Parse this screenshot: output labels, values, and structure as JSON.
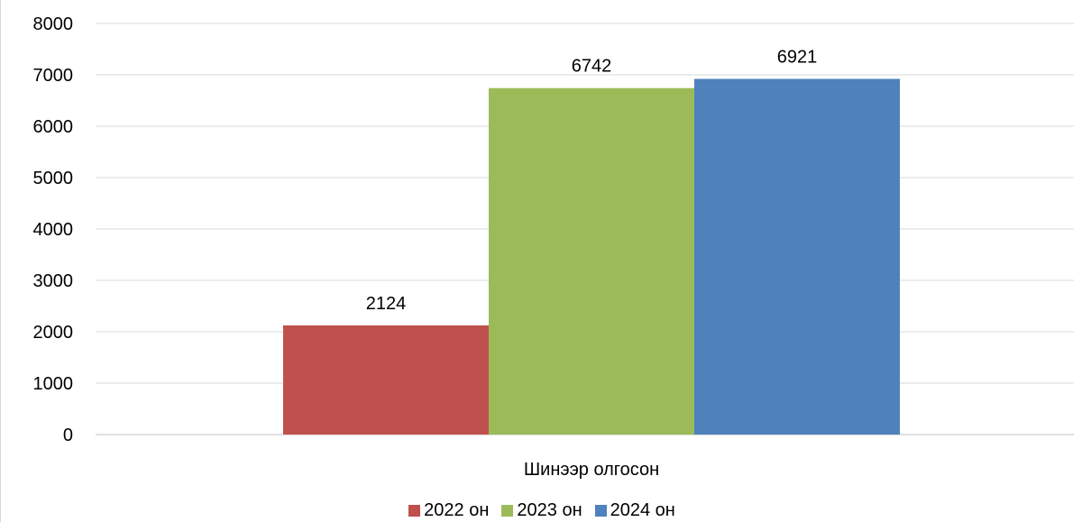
{
  "chart_data": {
    "type": "bar",
    "categories": [
      "Шинээр олгосон"
    ],
    "series": [
      {
        "name": "2022 он",
        "values": [
          2124
        ],
        "color": "#C0504D"
      },
      {
        "name": "2023 он",
        "values": [
          6742
        ],
        "color": "#9BBB59"
      },
      {
        "name": "2024 он",
        "values": [
          6921
        ],
        "color": "#4F81BD"
      }
    ],
    "y_ticks": [
      "0",
      "1000",
      "2000",
      "3000",
      "4000",
      "5000",
      "6000",
      "7000",
      "8000"
    ],
    "ylim": [
      0,
      8000
    ],
    "grid": true,
    "data_labels": true,
    "legend": "bottom"
  }
}
